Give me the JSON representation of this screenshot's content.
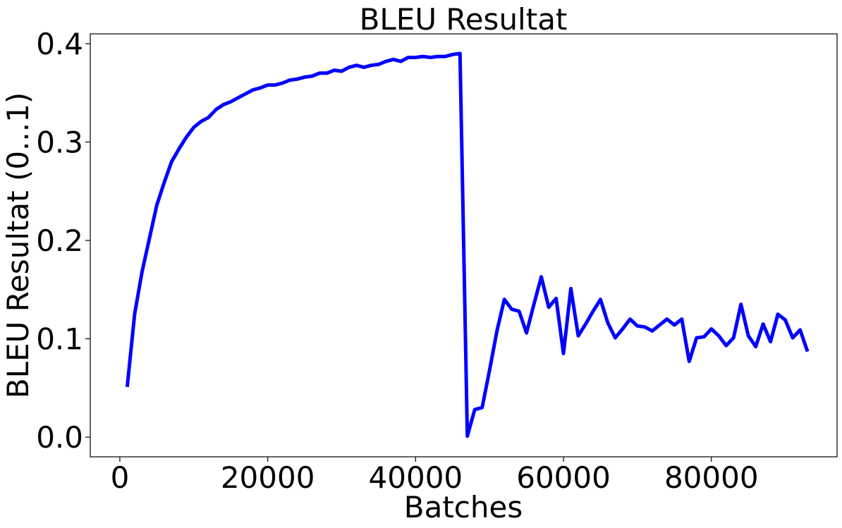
{
  "chart_data": {
    "type": "line",
    "title": "BLEU Resultat",
    "xlabel": "Batches",
    "ylabel": "BLEU Resultat (0...1)",
    "xlim": [
      -4000,
      97000
    ],
    "ylim": [
      -0.02,
      0.41
    ],
    "xticks": [
      0,
      20000,
      40000,
      60000,
      80000
    ],
    "yticks": [
      0.0,
      0.1,
      0.2,
      0.3,
      0.4
    ],
    "ytick_labels": [
      "0.0",
      "0.1",
      "0.2",
      "0.3",
      "0.4"
    ],
    "grid": false,
    "legend": "none",
    "series": [
      {
        "color": "#0000ff",
        "x": [
          1000,
          2000,
          3000,
          4000,
          5000,
          6000,
          7000,
          8000,
          9000,
          10000,
          11000,
          12000,
          13000,
          14000,
          15000,
          16000,
          17000,
          18000,
          19000,
          20000,
          21000,
          22000,
          23000,
          24000,
          25000,
          26000,
          27000,
          28000,
          29000,
          30000,
          31000,
          32000,
          33000,
          34000,
          35000,
          36000,
          37000,
          38000,
          39000,
          40000,
          41000,
          42000,
          43000,
          44000,
          45000,
          46000,
          47000,
          48000,
          49000,
          50000,
          51000,
          52000,
          53000,
          54000,
          55000,
          56000,
          57000,
          58000,
          59000,
          60000,
          61000,
          62000,
          63000,
          64000,
          65000,
          66000,
          67000,
          68000,
          69000,
          70000,
          71000,
          72000,
          73000,
          74000,
          75000,
          76000,
          77000,
          78000,
          79000,
          80000,
          81000,
          82000,
          83000,
          84000,
          85000,
          86000,
          87000,
          88000,
          89000,
          90000,
          91000,
          92000,
          93000
        ],
        "y": [
          0.051,
          0.125,
          0.168,
          0.202,
          0.236,
          0.259,
          0.28,
          0.293,
          0.305,
          0.315,
          0.321,
          0.325,
          0.333,
          0.338,
          0.341,
          0.345,
          0.349,
          0.353,
          0.355,
          0.358,
          0.358,
          0.36,
          0.363,
          0.364,
          0.366,
          0.367,
          0.37,
          0.37,
          0.373,
          0.372,
          0.376,
          0.378,
          0.376,
          0.378,
          0.379,
          0.382,
          0.384,
          0.382,
          0.386,
          0.386,
          0.387,
          0.386,
          0.387,
          0.387,
          0.389,
          0.39,
          0.001,
          0.028,
          0.03,
          0.068,
          0.108,
          0.14,
          0.13,
          0.128,
          0.106,
          0.135,
          0.163,
          0.132,
          0.141,
          0.085,
          0.151,
          0.103,
          0.115,
          0.128,
          0.14,
          0.116,
          0.101,
          0.11,
          0.12,
          0.113,
          0.112,
          0.108,
          0.114,
          0.12,
          0.114,
          0.12,
          0.077,
          0.101,
          0.102,
          0.11,
          0.103,
          0.093,
          0.101,
          0.135,
          0.103,
          0.092,
          0.115,
          0.097,
          0.125,
          0.119,
          0.101,
          0.109,
          0.087
        ]
      }
    ]
  }
}
